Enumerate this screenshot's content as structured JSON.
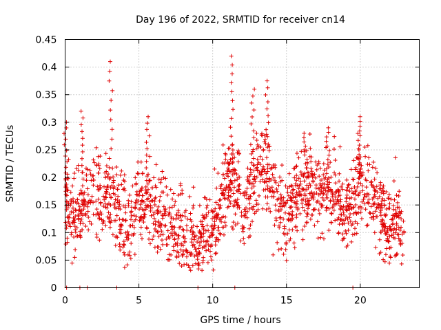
{
  "chart_data": {
    "type": "scatter",
    "title": "Day 196 of 2022, SRMTID for receiver cn14",
    "xlabel": "GPS time / hours",
    "ylabel": "SRMTID / TECUs",
    "xlim": [
      0,
      24
    ],
    "ylim": [
      0,
      0.45
    ],
    "xticks": [
      0,
      5,
      10,
      15,
      20
    ],
    "yticks": [
      0,
      0.05,
      0.1,
      0.15,
      0.2,
      0.25,
      0.3,
      0.35,
      0.4,
      0.45
    ],
    "xtick_labels": [
      "0",
      "5",
      "10",
      "15",
      "20"
    ],
    "ytick_labels": [
      "0",
      "0.05",
      "0.1",
      "0.15",
      "0.2",
      "0.25",
      "0.3",
      "0.35",
      "0.4",
      "0.45"
    ],
    "grid": true,
    "marker": "+",
    "color": "#e00000",
    "series": [
      {
        "name": "cn14",
        "mean_profile": [
          [
            0.0,
            0.16
          ],
          [
            0.5,
            0.13
          ],
          [
            1.0,
            0.14
          ],
          [
            1.5,
            0.16
          ],
          [
            2.0,
            0.19
          ],
          [
            2.5,
            0.17
          ],
          [
            3.0,
            0.17
          ],
          [
            3.5,
            0.14
          ],
          [
            4.0,
            0.12
          ],
          [
            4.5,
            0.12
          ],
          [
            5.0,
            0.16
          ],
          [
            5.5,
            0.15
          ],
          [
            6.0,
            0.14
          ],
          [
            6.5,
            0.13
          ],
          [
            7.0,
            0.11
          ],
          [
            7.5,
            0.11
          ],
          [
            8.0,
            0.1
          ],
          [
            8.5,
            0.09
          ],
          [
            9.0,
            0.09
          ],
          [
            9.5,
            0.1
          ],
          [
            10.0,
            0.12
          ],
          [
            10.5,
            0.14
          ],
          [
            11.0,
            0.2
          ],
          [
            11.5,
            0.19
          ],
          [
            12.0,
            0.15
          ],
          [
            12.5,
            0.16
          ],
          [
            13.0,
            0.22
          ],
          [
            13.5,
            0.21
          ],
          [
            14.0,
            0.18
          ],
          [
            14.5,
            0.15
          ],
          [
            15.0,
            0.13
          ],
          [
            15.5,
            0.16
          ],
          [
            16.0,
            0.17
          ],
          [
            16.5,
            0.17
          ],
          [
            17.0,
            0.17
          ],
          [
            17.5,
            0.18
          ],
          [
            18.0,
            0.17
          ],
          [
            18.5,
            0.16
          ],
          [
            19.0,
            0.14
          ],
          [
            19.5,
            0.15
          ],
          [
            20.0,
            0.2
          ],
          [
            20.5,
            0.18
          ],
          [
            21.0,
            0.15
          ],
          [
            21.5,
            0.14
          ],
          [
            22.0,
            0.11
          ],
          [
            22.5,
            0.13
          ],
          [
            23.0,
            0.1
          ]
        ],
        "peaks": [
          [
            0.05,
            0.3
          ],
          [
            1.2,
            0.32
          ],
          [
            3.1,
            0.41
          ],
          [
            5.6,
            0.31
          ],
          [
            11.3,
            0.42
          ],
          [
            12.7,
            0.36
          ],
          [
            13.7,
            0.375
          ],
          [
            16.3,
            0.28
          ],
          [
            17.8,
            0.29
          ],
          [
            19.9,
            0.31
          ]
        ],
        "points_at_zero": [
          0.1,
          1.0,
          1.5,
          3.5,
          9.0,
          11.5,
          19.5
        ]
      }
    ]
  }
}
